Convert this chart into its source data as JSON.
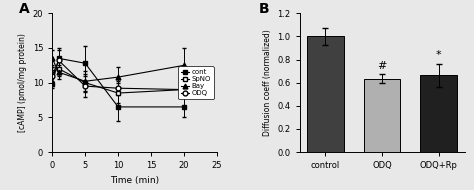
{
  "panel_A": {
    "title": "A",
    "xlabel": "Time (min)",
    "ylabel": "[cAMP] (pmol/mg protein)",
    "xlim": [
      0,
      25
    ],
    "ylim": [
      0,
      20
    ],
    "xticks": [
      0,
      5,
      10,
      15,
      20,
      25
    ],
    "yticks": [
      0,
      5,
      10,
      15,
      20
    ],
    "time_points": [
      0,
      1,
      5,
      10,
      20
    ],
    "series": {
      "cont": {
        "y": [
          9.8,
          13.5,
          12.8,
          6.5,
          6.5
        ],
        "yerr": [
          0.5,
          1.5,
          2.5,
          2.0,
          1.5
        ],
        "marker": "s",
        "label": "cont",
        "filled": true
      },
      "SpNO": {
        "y": [
          11.5,
          12.0,
          10.0,
          8.5,
          9.0
        ],
        "yerr": [
          0.8,
          1.0,
          1.2,
          1.5,
          1.0
        ],
        "marker": "s",
        "label": "SpNO",
        "filled": false
      },
      "Bay": {
        "y": [
          13.5,
          11.5,
          10.2,
          10.8,
          12.5
        ],
        "yerr": [
          1.2,
          1.0,
          1.5,
          1.5,
          2.5
        ],
        "marker": "^",
        "label": "Bay",
        "filled": true
      },
      "ODQ": {
        "y": [
          11.0,
          13.2,
          9.5,
          9.2,
          9.0
        ],
        "yerr": [
          1.5,
          1.5,
          1.5,
          1.0,
          1.0
        ],
        "marker": "o",
        "label": "ODQ",
        "filled": false
      }
    },
    "series_order": [
      "cont",
      "SpNO",
      "Bay",
      "ODQ"
    ]
  },
  "panel_B": {
    "title": "B",
    "ylabel": "Diffusion coeff (normalized)",
    "ylim": [
      0,
      1.2
    ],
    "yticks": [
      0,
      0.2,
      0.4,
      0.6,
      0.8,
      1.0,
      1.2
    ],
    "categories": [
      "control",
      "ODQ",
      "ODQ+Rp"
    ],
    "values": [
      1.0,
      0.635,
      0.665
    ],
    "yerrs": [
      0.07,
      0.04,
      0.1
    ],
    "bar_colors": [
      "#404040",
      "#b0b0b0",
      "#202020"
    ],
    "significance": [
      "",
      "#",
      "*"
    ]
  },
  "bg_color": "#e8e8e8"
}
